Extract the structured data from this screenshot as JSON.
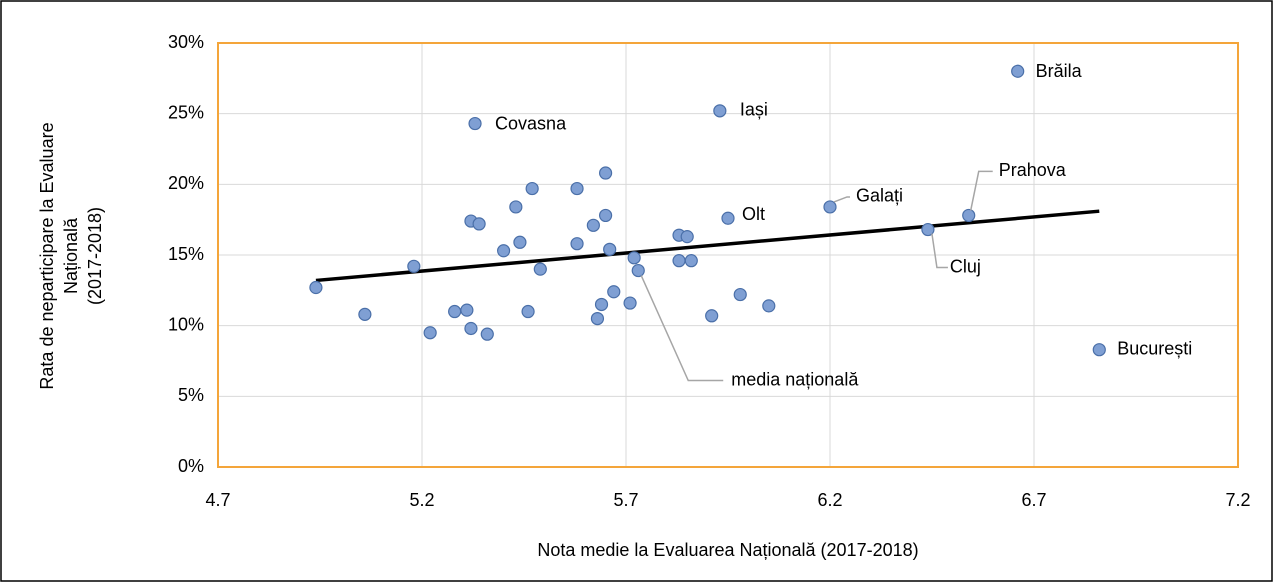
{
  "chart_data": {
    "type": "scatter",
    "x_label": "Nota medie la Evaluarea Națională (2017-2018)",
    "y_label": [
      "Rata de neparticipare la Evaluare",
      "Națională",
      "(2017-2018)"
    ],
    "x": [
      4.94,
      5.06,
      5.18,
      5.22,
      5.28,
      5.31,
      5.32,
      5.32,
      5.33,
      5.34,
      5.36,
      5.4,
      5.43,
      5.44,
      5.46,
      5.47,
      5.49,
      5.58,
      5.58,
      5.62,
      5.63,
      5.64,
      5.65,
      5.65,
      5.66,
      5.67,
      5.71,
      5.72,
      5.73,
      5.83,
      5.83,
      5.85,
      5.86,
      5.91,
      5.93,
      5.95,
      5.98,
      6.05,
      6.2,
      6.44,
      6.54,
      6.66,
      6.86
    ],
    "series": [
      {
        "color": "#7f9fd3",
        "values": [
          12.7,
          10.8,
          14.2,
          9.5,
          11.0,
          11.1,
          9.8,
          17.4,
          24.3,
          17.2,
          9.4,
          15.3,
          18.4,
          15.9,
          11.0,
          19.7,
          14.0,
          19.7,
          15.8,
          17.1,
          10.5,
          11.5,
          17.8,
          20.8,
          15.4,
          12.4,
          11.6,
          14.8,
          13.9,
          16.4,
          14.6,
          16.3,
          14.6,
          10.7,
          25.2,
          17.6,
          12.2,
          11.4,
          18.4,
          16.8,
          17.8,
          28.0,
          8.3
        ],
        "labels": [
          null,
          null,
          null,
          null,
          null,
          null,
          null,
          null,
          "Covasna",
          null,
          null,
          null,
          null,
          null,
          null,
          null,
          null,
          null,
          null,
          null,
          null,
          null,
          null,
          null,
          null,
          null,
          null,
          null,
          "media națională",
          null,
          null,
          null,
          null,
          null,
          "Iași",
          "Olt",
          null,
          null,
          "Galați",
          "Cluj",
          "Prahova",
          "Brăila",
          "București"
        ]
      }
    ],
    "trendline": {
      "color": "#000000",
      "x": [
        4.94,
        6.86
      ],
      "y": [
        13.2,
        18.1
      ]
    },
    "xlim": [
      4.7,
      7.2
    ],
    "xticks": [
      4.7,
      5.2,
      5.7,
      6.2,
      6.7,
      7.2
    ],
    "ylim": [
      0,
      30
    ],
    "yticks": [
      {
        "value": 0,
        "label": "0%"
      },
      {
        "value": 5,
        "label": "5%"
      },
      {
        "value": 10,
        "label": "10%"
      },
      {
        "value": 15,
        "label": "15%"
      },
      {
        "value": 20,
        "label": "20%"
      },
      {
        "value": 25,
        "label": "25%"
      },
      {
        "value": 30,
        "label": "30%"
      }
    ],
    "grid": true
  }
}
